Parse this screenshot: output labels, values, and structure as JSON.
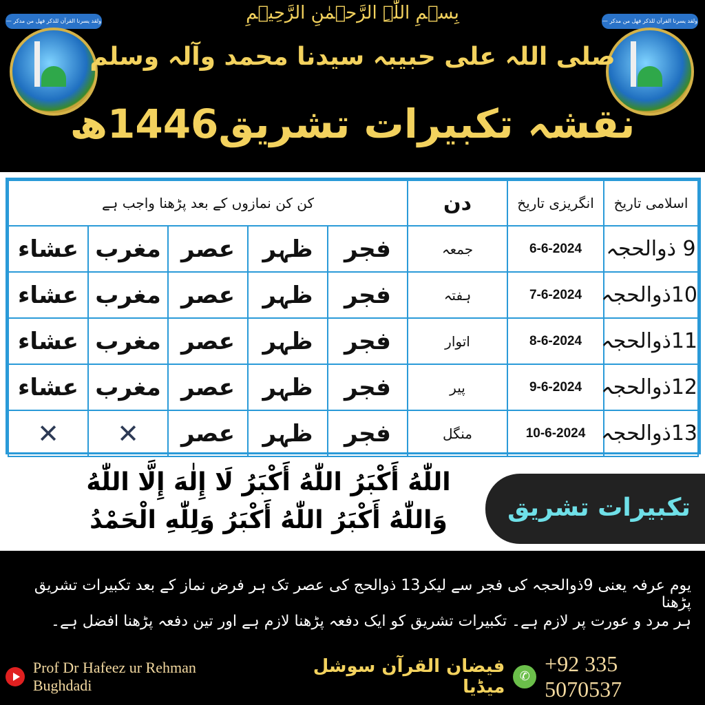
{
  "header": {
    "bismillah": "بِسۡمِ اللّٰہِ الرَّحۡمٰنِ الرَّحِیۡمِ",
    "durood": "صلی اللہ علی حبیبہ سیدنا محمد وآلہ وسلم",
    "title": "نقشہ تکبیرات تشریق1446ھ",
    "logo_text": "ولقد یسرنا القرآن للذکر فھل من مدکر — ادارہ فیضان القرآن لاہور"
  },
  "table": {
    "headers": {
      "islamic_date": "اسلامی تاریخ",
      "english_date": "انگریزی تاریخ",
      "day": "دن",
      "prayers": "کن کن نمازوں کے بعد پڑھنا واجب ہے"
    },
    "rows": [
      {
        "islamic": "9 ذوالحجہ",
        "english": "6-6-2024",
        "day": "جمعہ",
        "prayers": [
          "فجر",
          "ظہر",
          "عصر",
          "مغرب",
          "عشاء"
        ]
      },
      {
        "islamic": "10ذوالحجہ",
        "english": "7-6-2024",
        "day": "ہفتہ",
        "prayers": [
          "فجر",
          "ظہر",
          "عصر",
          "مغرب",
          "عشاء"
        ]
      },
      {
        "islamic": "11ذوالحجہ",
        "english": "8-6-2024",
        "day": "اتوار",
        "prayers": [
          "فجر",
          "ظہر",
          "عصر",
          "مغرب",
          "عشاء"
        ]
      },
      {
        "islamic": "12ذوالحجہ",
        "english": "9-6-2024",
        "day": "پیر",
        "prayers": [
          "فجر",
          "ظہر",
          "عصر",
          "مغرب",
          "عشاء"
        ]
      },
      {
        "islamic": "13ذوالحجہ",
        "english": "10-6-2024",
        "day": "منگل",
        "prayers": [
          "فجر",
          "ظہر",
          "عصر",
          "✕",
          "✕"
        ]
      }
    ]
  },
  "takbir": {
    "line1": "اللّٰهُ أَكْبَرُ اللّٰهُ أَكْبَرُ لَا إِلٰهَ إِلَّا اللّٰهُ",
    "line2": "وَاللّٰهُ أَكْبَرُ اللّٰهُ أَكْبَرُ وَلِلّٰهِ الْحَمْدُ",
    "label": "تکبیرات تشریق"
  },
  "footer": {
    "note_line1": "یوم عرفہ یعنی 9ذوالحجہ کی فجر سے لیکر13 ذوالحج کی عصر تک ہر فرض نماز کے بعد تکبیرات تشریق پڑھنا",
    "note_line2": "ہر مرد و عورت پر لازم ہے۔ تکبیرات تشریق کو ایک دفعہ پڑھنا لازم ہے اور تین دفعہ پڑھنا افضل ہے۔",
    "author": "Prof Dr Hafeez ur Rehman Bughdadi",
    "media": "فیضان القرآن سوشل میڈیا",
    "phone": "+92 335 5070537"
  },
  "colors": {
    "gold": "#f3d25e",
    "table_border": "#2a9ad8",
    "label_text": "#6fe0e8"
  }
}
